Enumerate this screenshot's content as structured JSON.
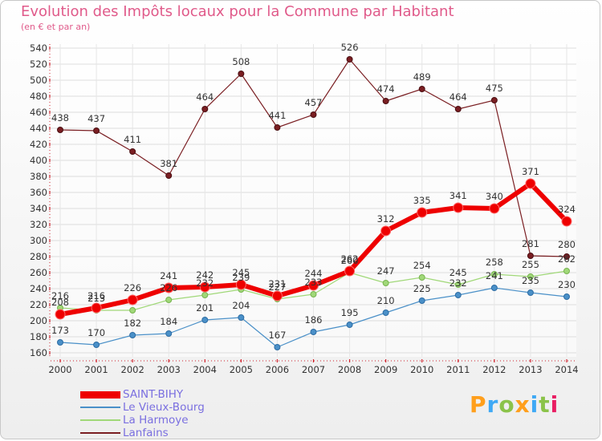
{
  "header": {
    "title": "Evolution des Impôts locaux pour la Commune par Habitant",
    "subtitle": "(en € et par an)"
  },
  "brand": {
    "label": "Proxiti",
    "colors": [
      "#ff9f1c",
      "#3fa9f5",
      "#8bc34a",
      "#ff9f1c",
      "#3fa9f5",
      "#8bc34a",
      "#e91e63"
    ]
  },
  "chart_data": {
    "type": "line",
    "title": "Evolution des Impôts locaux pour la Commune par Habitant",
    "ylabel": "(en € et par an)",
    "xlabel": "",
    "ylim": [
      160,
      540
    ],
    "ystep": 20,
    "grid": true,
    "legend": "bottom-left",
    "categories": [
      "2000",
      "2001",
      "2002",
      "2003",
      "2004",
      "2005",
      "2006",
      "2007",
      "2008",
      "2009",
      "2010",
      "2011",
      "2012",
      "2013",
      "2014"
    ],
    "series": [
      {
        "name": "SAINT-BIHY",
        "color": "#ee0000",
        "values": [
          208,
          216,
          226,
          241,
          242,
          245,
          231,
          244,
          262,
          312,
          335,
          341,
          340,
          371,
          324
        ]
      },
      {
        "name": "Le Vieux-Bourg",
        "color": "#4a90c8",
        "values": [
          173,
          170,
          182,
          184,
          201,
          204,
          167,
          186,
          195,
          210,
          225,
          232,
          241,
          235,
          230
        ]
      },
      {
        "name": "La Harmoye",
        "color": "#a0d878",
        "values": [
          216,
          213,
          213,
          226,
          232,
          239,
          227,
          233,
          260,
          247,
          254,
          245,
          258,
          255,
          262
        ]
      },
      {
        "name": "Lanfains",
        "color": "#7a1e22",
        "values": [
          438,
          437,
          411,
          381,
          464,
          508,
          441,
          457,
          526,
          474,
          489,
          464,
          475,
          281,
          280
        ]
      }
    ],
    "labels": [
      {
        "series": "SAINT-BIHY",
        "values": [
          "208",
          "216",
          "226",
          "241",
          "242",
          "245",
          "231",
          "244",
          "262",
          "312",
          "335",
          "341",
          "340",
          "371",
          "324"
        ]
      },
      {
        "series": "Le Vieux-Bourg",
        "values": [
          "173",
          "170",
          "182",
          "184",
          "201",
          "204",
          "167",
          "186",
          "195",
          "210",
          "225",
          "232",
          "241",
          "235",
          "230"
        ]
      },
      {
        "series": "La Harmoye",
        "values": [
          "216",
          "213",
          "",
          "226",
          "232",
          "239",
          "227",
          "233",
          "260",
          "247",
          "254",
          "245",
          "258",
          "255",
          "262"
        ]
      },
      {
        "series": "Lanfains",
        "values": [
          "438",
          "437",
          "411",
          "381",
          "464",
          "508",
          "441",
          "457",
          "526",
          "474",
          "489",
          "464",
          "475",
          "281",
          "280"
        ]
      }
    ]
  }
}
